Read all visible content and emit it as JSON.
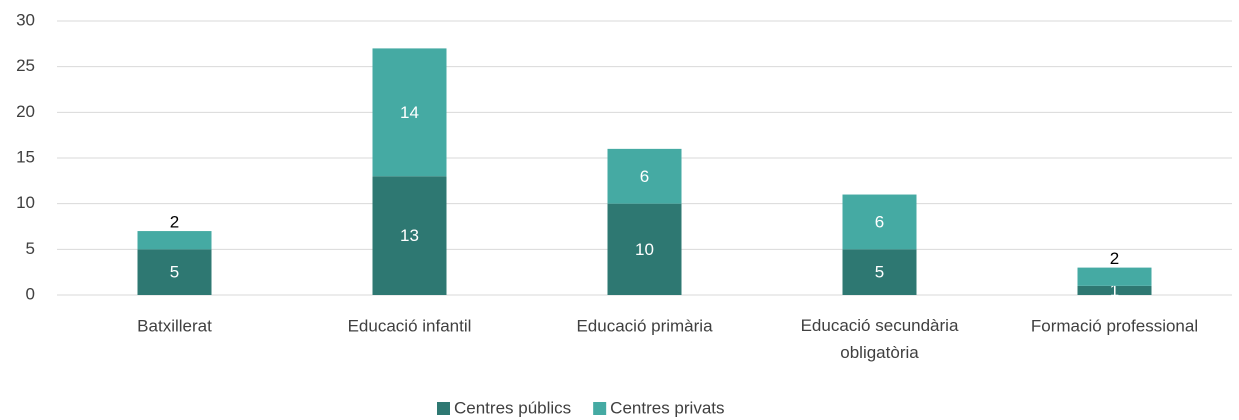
{
  "chart_data": {
    "type": "stacked_bar",
    "categories": [
      "Batxillerat",
      "Educació infantil",
      "Educació primària",
      "Educació secundària obligatòria",
      "Formació professional"
    ],
    "series": [
      {
        "name": "Centres públics",
        "color": "#2e7872",
        "values": [
          5,
          13,
          10,
          5,
          1
        ]
      },
      {
        "name": "Centres privats",
        "color": "#45aaa3",
        "values": [
          2,
          14,
          6,
          6,
          2
        ]
      }
    ],
    "ylim": [
      0,
      30
    ],
    "yticks": [
      0,
      5,
      10,
      15,
      20,
      25,
      30
    ],
    "grid": true,
    "legend": "bottom"
  }
}
